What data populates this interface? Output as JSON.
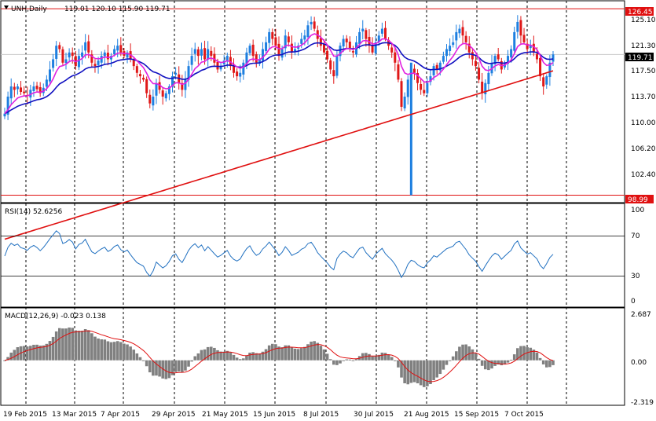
{
  "header": {
    "symbol": "UNH,Daily",
    "ohlc": "119.01 120.10 115.90 119.71"
  },
  "colors": {
    "bull": "#1E7FE0",
    "bear": "#E01818",
    "ma_fast": "#E020E0",
    "ma_mid": "#1010C0",
    "ma_slow": "#E01010",
    "hline": "#E01010",
    "rsi": "#2070C0",
    "macd_hist": "#808080",
    "macd_signal": "#E01010",
    "grid": "#000000"
  },
  "price_axis": {
    "ticks": [
      "125.10",
      "121.30",
      "117.50",
      "113.70",
      "110.00",
      "106.20",
      "102.40"
    ],
    "tags": [
      {
        "label": "126.45",
        "bg": "#E01010",
        "fg": "#FFFFFF"
      },
      {
        "label": "119.71",
        "bg": "#000000",
        "fg": "#FFFFFF"
      },
      {
        "label": "98.99",
        "bg": "#E01010",
        "fg": "#FFFFFF"
      }
    ]
  },
  "rsi": {
    "title": "RSI(14) 52.6256",
    "levels": [
      "100",
      "70",
      "30",
      "0"
    ]
  },
  "macd": {
    "title": "MACD(12,26,9) -0.023 0.138",
    "axis": [
      "2.687",
      "0.00",
      "-2.319"
    ]
  },
  "time_axis": [
    "19 Feb 2015",
    "13 Mar 2015",
    "7 Apr 2015",
    "29 Apr 2015",
    "21 May 2015",
    "15 Jun 2015",
    "8 Jul 2015",
    "30 Jul 2015",
    "21 Aug 2015",
    "15 Sep 2015",
    "7 Oct 2015"
  ],
  "chart_data": [
    {
      "type": "candlestick",
      "title": "UNH,Daily",
      "ylim": [
        98.0,
        127.5
      ],
      "horizontal_levels": [
        126.45,
        98.99
      ],
      "last_price": 119.71,
      "closes": [
        111.0,
        113.5,
        115.0,
        114.5,
        115.0,
        114.2,
        114.0,
        113.6,
        114.5,
        115.0,
        114.6,
        114.0,
        114.8,
        116.0,
        117.5,
        119.0,
        121.0,
        120.5,
        118.5,
        119.0,
        120.0,
        119.5,
        118.0,
        119.5,
        120.0,
        121.5,
        120.0,
        118.5,
        118.0,
        118.8,
        119.5,
        120.0,
        119.0,
        119.5,
        120.5,
        121.0,
        120.0,
        119.5,
        120.0,
        119.0,
        118.0,
        117.0,
        116.5,
        116.0,
        114.0,
        112.5,
        113.5,
        115.5,
        114.5,
        113.5,
        114.0,
        115.0,
        116.5,
        117.0,
        115.5,
        114.5,
        116.0,
        118.0,
        119.5,
        120.5,
        119.5,
        120.5,
        119.0,
        120.5,
        119.5,
        118.5,
        117.5,
        118.0,
        118.8,
        119.5,
        118.0,
        117.0,
        116.5,
        117.0,
        118.5,
        120.0,
        121.0,
        119.5,
        118.5,
        119.0,
        120.5,
        121.5,
        123.0,
        122.0,
        121.0,
        119.5,
        120.5,
        122.5,
        121.5,
        120.0,
        120.5,
        121.0,
        122.0,
        122.5,
        124.0,
        124.5,
        123.5,
        122.0,
        121.0,
        120.0,
        119.0,
        117.5,
        116.5,
        119.5,
        121.0,
        122.0,
        121.5,
        120.5,
        120.0,
        121.5,
        123.0,
        123.5,
        122.0,
        121.0,
        120.0,
        121.5,
        122.5,
        123.5,
        122.0,
        121.0,
        120.0,
        118.5,
        116.0,
        112.0,
        113.5,
        116.0,
        117.5,
        117.0,
        115.5,
        114.5,
        114.0,
        115.5,
        116.5,
        118.0,
        117.5,
        118.5,
        119.5,
        120.5,
        121.0,
        121.5,
        123.0,
        123.5,
        122.5,
        121.5,
        120.0,
        119.0,
        118.0,
        116.0,
        114.0,
        115.5,
        117.0,
        118.5,
        119.5,
        119.0,
        117.5,
        118.5,
        119.5,
        120.5,
        123.0,
        124.5,
        122.5,
        121.5,
        120.5,
        121.0,
        120.0,
        119.0,
        116.5,
        115.0,
        116.5,
        118.5,
        119.71
      ]
    },
    {
      "type": "line",
      "title": "RSI(14) 52.6256",
      "ylim": [
        0,
        100
      ],
      "levels": [
        70,
        30
      ]
    },
    {
      "type": "bar",
      "title": "MACD(12,26,9) -0.023 0.138",
      "ylim": [
        -2.319,
        2.687
      ],
      "last_main": -0.023,
      "last_signal": 0.138
    }
  ]
}
